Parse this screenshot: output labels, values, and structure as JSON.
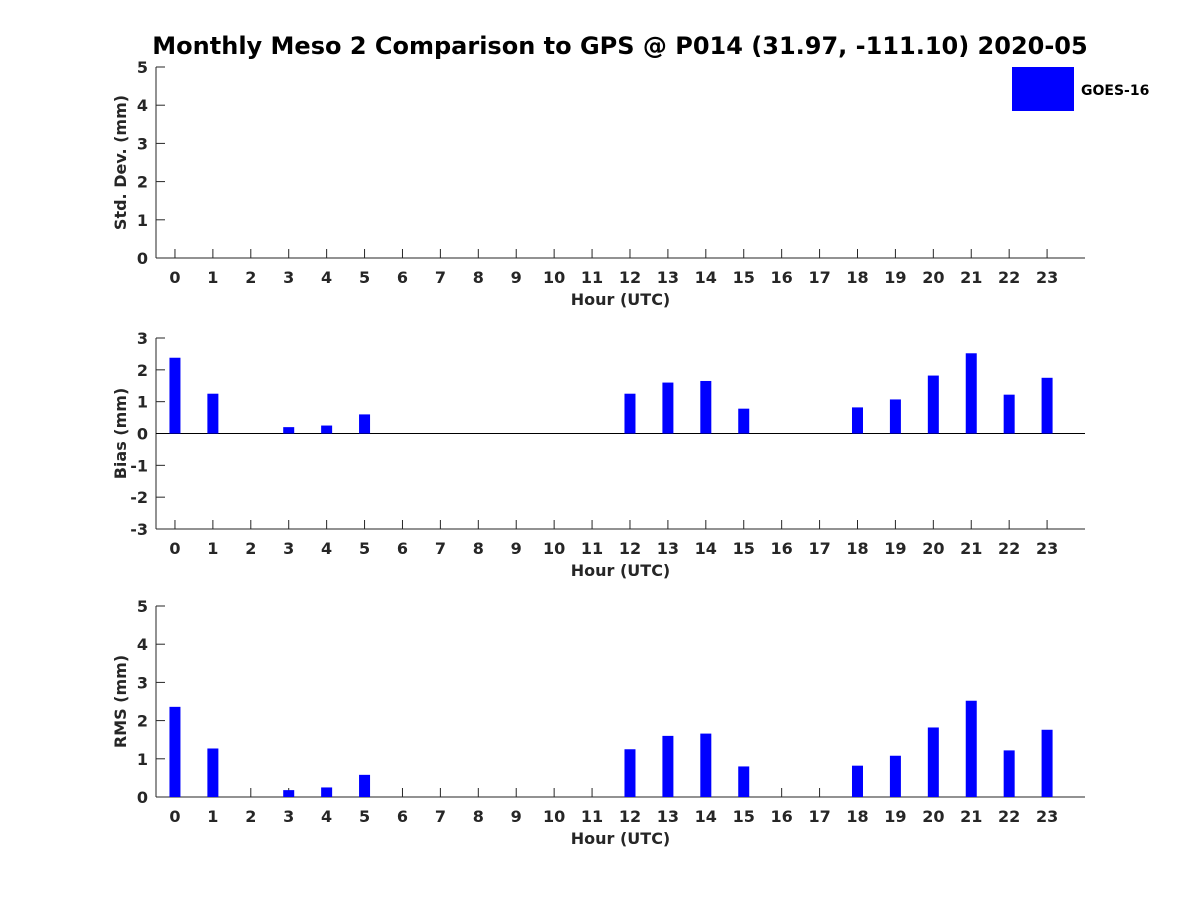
{
  "title": "Monthly Meso 2 Comparison to GPS @ P014 (31.97, -111.10) 2020-05",
  "legend": {
    "label": "GOES-16",
    "color": "#0000ff",
    "placement": "top-right"
  },
  "chart_data": [
    {
      "type": "bar",
      "panel": "stddev",
      "xlabel": "Hour (UTC)",
      "ylabel": "Std. Dev. (mm)",
      "ylim": [
        0,
        5
      ],
      "yticks": [
        0,
        1,
        2,
        3,
        4,
        5
      ],
      "categories": [
        "0",
        "1",
        "2",
        "3",
        "4",
        "5",
        "6",
        "7",
        "8",
        "9",
        "10",
        "11",
        "12",
        "13",
        "14",
        "15",
        "16",
        "17",
        "18",
        "19",
        "20",
        "21",
        "22",
        "23"
      ],
      "series": [
        {
          "values": [
            0,
            0,
            0,
            0,
            0,
            0,
            0,
            0,
            0,
            0,
            0,
            0,
            0,
            0,
            0,
            0,
            0,
            0,
            0,
            0,
            0,
            0,
            0,
            0
          ]
        }
      ]
    },
    {
      "type": "bar",
      "panel": "bias",
      "xlabel": "Hour (UTC)",
      "ylabel": "Bias (mm)",
      "ylim": [
        -3,
        3
      ],
      "yticks": [
        -3,
        -2,
        -1,
        0,
        1,
        2,
        3
      ],
      "categories": [
        "0",
        "1",
        "2",
        "3",
        "4",
        "5",
        "6",
        "7",
        "8",
        "9",
        "10",
        "11",
        "12",
        "13",
        "14",
        "15",
        "16",
        "17",
        "18",
        "19",
        "20",
        "21",
        "22",
        "23"
      ],
      "series": [
        {
          "values": [
            2.38,
            1.25,
            0,
            0.2,
            0.25,
            0.6,
            0,
            0,
            0,
            0,
            0,
            0,
            1.25,
            1.6,
            1.65,
            0.78,
            0,
            0,
            0.82,
            1.07,
            1.82,
            2.52,
            1.22,
            1.75
          ]
        }
      ]
    },
    {
      "type": "bar",
      "panel": "rms",
      "xlabel": "Hour (UTC)",
      "ylabel": "RMS (mm)",
      "ylim": [
        0,
        5
      ],
      "yticks": [
        0,
        1,
        2,
        3,
        4,
        5
      ],
      "categories": [
        "0",
        "1",
        "2",
        "3",
        "4",
        "5",
        "6",
        "7",
        "8",
        "9",
        "10",
        "11",
        "12",
        "13",
        "14",
        "15",
        "16",
        "17",
        "18",
        "19",
        "20",
        "21",
        "22",
        "23"
      ],
      "series": [
        {
          "values": [
            2.36,
            1.27,
            0,
            0.18,
            0.25,
            0.58,
            0,
            0,
            0,
            0,
            0,
            0,
            1.25,
            1.6,
            1.66,
            0.8,
            0,
            0,
            0.82,
            1.08,
            1.82,
            2.52,
            1.22,
            1.76
          ]
        }
      ]
    }
  ]
}
